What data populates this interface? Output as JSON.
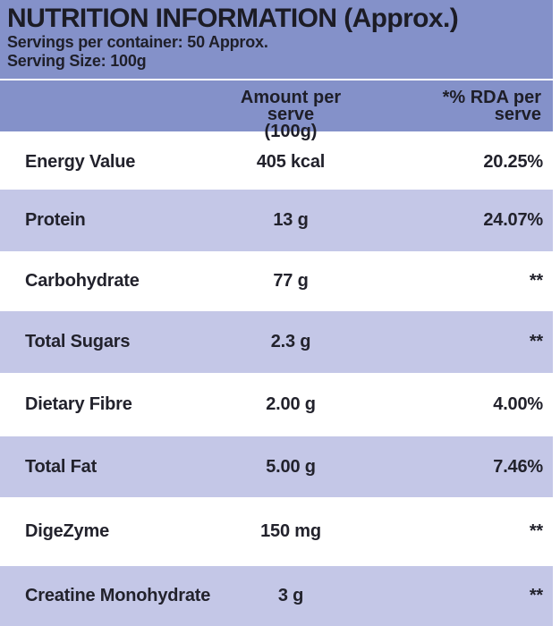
{
  "banner": {
    "title": "NUTRITION INFORMATION (Approx.)",
    "servings_per_container": "Servings per container: 50 Approx.",
    "serving_size": "Serving Size: 100g"
  },
  "table": {
    "header": {
      "amount": [
        "Amount per serve",
        "(100g)"
      ],
      "rda": [
        "*% RDA per",
        "serve"
      ]
    },
    "rows": [
      {
        "label": "Energy Value",
        "amount": "405 kcal",
        "rda": "20.25%"
      },
      {
        "label": "Protein",
        "amount": "13 g",
        "rda": "24.07%"
      },
      {
        "label": "Carbohydrate",
        "amount": "77 g",
        "rda": "**"
      },
      {
        "label": "Total Sugars",
        "amount": "2.3 g",
        "rda": "**"
      },
      {
        "label": "Dietary Fibre",
        "amount": "2.00 g",
        "rda": "4.00%"
      },
      {
        "label": "Total Fat",
        "amount": "5.00 g",
        "rda": "7.46%"
      },
      {
        "label": "DigeZyme",
        "amount": "150 mg",
        "rda": "**"
      },
      {
        "label": "Creatine Monohydrate",
        "amount": "3 g",
        "rda": "**"
      }
    ]
  },
  "colors": {
    "banner_purple": "#8491c9",
    "row_alt_purple": "#c4c7e7",
    "text": "#20202a",
    "background": "#ffffff"
  }
}
